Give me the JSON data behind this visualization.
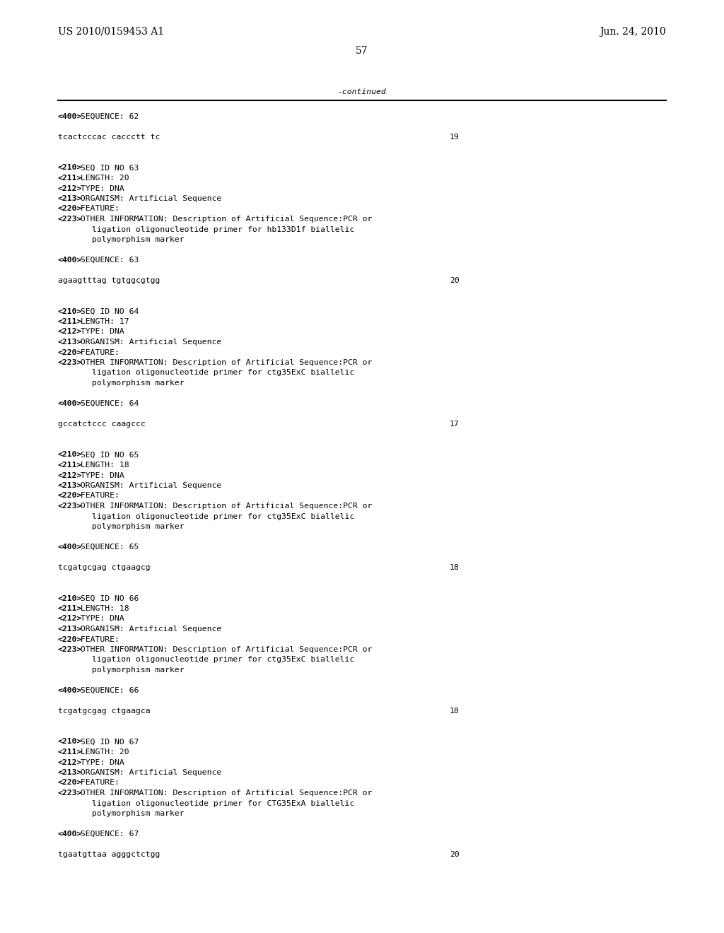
{
  "background_color": "#ffffff",
  "header_left": "US 2010/0159453 A1",
  "header_right": "Jun. 24, 2010",
  "page_number": "57",
  "continued_text": "-continued",
  "header_fontsize": 10,
  "body_fontsize": 8.2,
  "page_num_fontsize": 10,
  "content": [
    {
      "type": "seq400",
      "text": "<400> SEQUENCE: 62"
    },
    {
      "type": "blank"
    },
    {
      "type": "sequence",
      "text": "tcactcccac caccctt tc",
      "length": "19"
    },
    {
      "type": "blank"
    },
    {
      "type": "blank"
    },
    {
      "type": "seq210",
      "text": "<210> SEQ ID NO 63"
    },
    {
      "type": "seq210",
      "text": "<211> LENGTH: 20"
    },
    {
      "type": "seq210",
      "text": "<212> TYPE: DNA"
    },
    {
      "type": "seq210",
      "text": "<213> ORGANISM: Artificial Sequence"
    },
    {
      "type": "seq210",
      "text": "<220> FEATURE:"
    },
    {
      "type": "seq223",
      "text": "<223> OTHER INFORMATION: Description of Artificial Sequence:PCR or"
    },
    {
      "type": "continuation",
      "text": "      ligation oligonucleotide primer for hb133D1f biallelic"
    },
    {
      "type": "continuation",
      "text": "      polymorphism marker"
    },
    {
      "type": "blank"
    },
    {
      "type": "seq400",
      "text": "<400> SEQUENCE: 63"
    },
    {
      "type": "blank"
    },
    {
      "type": "sequence",
      "text": "agaagtttag tgtggcgtgg",
      "length": "20"
    },
    {
      "type": "blank"
    },
    {
      "type": "blank"
    },
    {
      "type": "seq210",
      "text": "<210> SEQ ID NO 64"
    },
    {
      "type": "seq210",
      "text": "<211> LENGTH: 17"
    },
    {
      "type": "seq210",
      "text": "<212> TYPE: DNA"
    },
    {
      "type": "seq210",
      "text": "<213> ORGANISM: Artificial Sequence"
    },
    {
      "type": "seq210",
      "text": "<220> FEATURE:"
    },
    {
      "type": "seq223",
      "text": "<223> OTHER INFORMATION: Description of Artificial Sequence:PCR or"
    },
    {
      "type": "continuation",
      "text": "      ligation oligonucleotide primer for ctg35ExC biallelic"
    },
    {
      "type": "continuation",
      "text": "      polymorphism marker"
    },
    {
      "type": "blank"
    },
    {
      "type": "seq400",
      "text": "<400> SEQUENCE: 64"
    },
    {
      "type": "blank"
    },
    {
      "type": "sequence",
      "text": "gccatctccc caagccc",
      "length": "17"
    },
    {
      "type": "blank"
    },
    {
      "type": "blank"
    },
    {
      "type": "seq210",
      "text": "<210> SEQ ID NO 65"
    },
    {
      "type": "seq210",
      "text": "<211> LENGTH: 18"
    },
    {
      "type": "seq210",
      "text": "<212> TYPE: DNA"
    },
    {
      "type": "seq210",
      "text": "<213> ORGANISM: Artificial Sequence"
    },
    {
      "type": "seq210",
      "text": "<220> FEATURE:"
    },
    {
      "type": "seq223",
      "text": "<223> OTHER INFORMATION: Description of Artificial Sequence:PCR or"
    },
    {
      "type": "continuation",
      "text": "      ligation oligonucleotide primer for ctg35ExC biallelic"
    },
    {
      "type": "continuation",
      "text": "      polymorphism marker"
    },
    {
      "type": "blank"
    },
    {
      "type": "seq400",
      "text": "<400> SEQUENCE: 65"
    },
    {
      "type": "blank"
    },
    {
      "type": "sequence",
      "text": "tcgatgcgag ctgaagcg",
      "length": "18"
    },
    {
      "type": "blank"
    },
    {
      "type": "blank"
    },
    {
      "type": "seq210",
      "text": "<210> SEQ ID NO 66"
    },
    {
      "type": "seq210",
      "text": "<211> LENGTH: 18"
    },
    {
      "type": "seq210",
      "text": "<212> TYPE: DNA"
    },
    {
      "type": "seq210",
      "text": "<213> ORGANISM: Artificial Sequence"
    },
    {
      "type": "seq210",
      "text": "<220> FEATURE:"
    },
    {
      "type": "seq223",
      "text": "<223> OTHER INFORMATION: Description of Artificial Sequence:PCR or"
    },
    {
      "type": "continuation",
      "text": "      ligation oligonucleotide primer for ctg35ExC biallelic"
    },
    {
      "type": "continuation",
      "text": "      polymorphism marker"
    },
    {
      "type": "blank"
    },
    {
      "type": "seq400",
      "text": "<400> SEQUENCE: 66"
    },
    {
      "type": "blank"
    },
    {
      "type": "sequence",
      "text": "tcgatgcgag ctgaagca",
      "length": "18"
    },
    {
      "type": "blank"
    },
    {
      "type": "blank"
    },
    {
      "type": "seq210",
      "text": "<210> SEQ ID NO 67"
    },
    {
      "type": "seq210",
      "text": "<211> LENGTH: 20"
    },
    {
      "type": "seq210",
      "text": "<212> TYPE: DNA"
    },
    {
      "type": "seq210",
      "text": "<213> ORGANISM: Artificial Sequence"
    },
    {
      "type": "seq210",
      "text": "<220> FEATURE:"
    },
    {
      "type": "seq223",
      "text": "<223> OTHER INFORMATION: Description of Artificial Sequence:PCR or"
    },
    {
      "type": "continuation",
      "text": "      ligation oligonucleotide primer for CTG35ExA biallelic"
    },
    {
      "type": "continuation",
      "text": "      polymorphism marker"
    },
    {
      "type": "blank"
    },
    {
      "type": "seq400",
      "text": "<400> SEQUENCE: 67"
    },
    {
      "type": "blank"
    },
    {
      "type": "sequence",
      "text": "tgaatgttaa agggctctgg",
      "length": "20"
    }
  ]
}
